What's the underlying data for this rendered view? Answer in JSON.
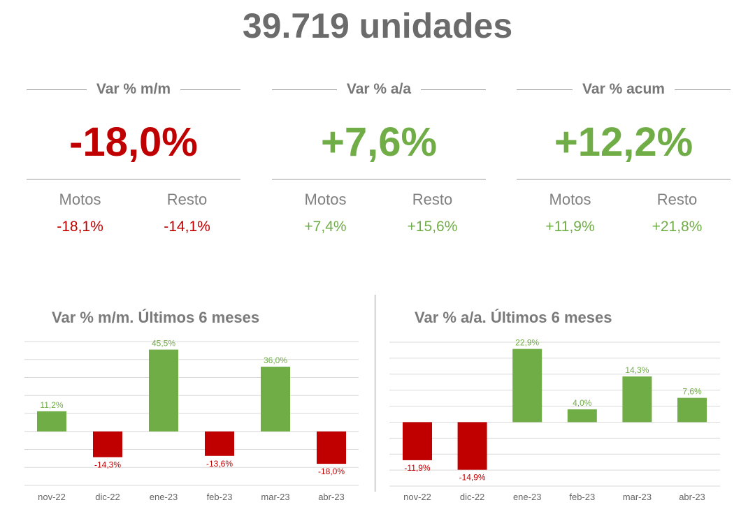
{
  "title": "39.719 unidades",
  "colors": {
    "positive": "#70ad47",
    "negative": "#c00000",
    "text": "#7a7a7a"
  },
  "kpis": [
    {
      "label": "Var % m/m",
      "value": "-18,0%",
      "sign": "negative",
      "subs": [
        {
          "label": "Motos",
          "value": "-18,1%",
          "sign": "negative"
        },
        {
          "label": "Resto",
          "value": "-14,1%",
          "sign": "negative"
        }
      ]
    },
    {
      "label": "Var % a/a",
      "value": "+7,6%",
      "sign": "positive",
      "subs": [
        {
          "label": "Motos",
          "value": "+7,4%",
          "sign": "positive"
        },
        {
          "label": "Resto",
          "value": "+15,6%",
          "sign": "positive"
        }
      ]
    },
    {
      "label": "Var % acum",
      "value": "+12,2%",
      "sign": "positive",
      "subs": [
        {
          "label": "Motos",
          "value": "+11,9%",
          "sign": "positive"
        },
        {
          "label": "Resto",
          "value": "+21,8%",
          "sign": "positive"
        }
      ]
    }
  ],
  "chart_data": [
    {
      "type": "bar",
      "title": "Var % m/m. Últimos 6 meses",
      "categories": [
        "nov-22",
        "dic-22",
        "ene-23",
        "feb-23",
        "mar-23",
        "abr-23"
      ],
      "values": [
        11.2,
        -14.3,
        45.5,
        -13.6,
        36.0,
        -18.0
      ],
      "labels": [
        "11,2%",
        "-14,3%",
        "45,5%",
        "-13,6%",
        "36,0%",
        "-18,0%"
      ],
      "ylim": [
        -30,
        50
      ],
      "ystep": 10,
      "grid": true
    },
    {
      "type": "bar",
      "title": "Var % a/a. Últimos 6 meses",
      "categories": [
        "nov-22",
        "dic-22",
        "ene-23",
        "feb-23",
        "mar-23",
        "abr-23"
      ],
      "values": [
        -11.9,
        -14.9,
        22.9,
        4.0,
        14.3,
        7.6
      ],
      "labels": [
        "-11,9%",
        "-14,9%",
        "22,9%",
        "4,0%",
        "14,3%",
        "7,6%"
      ],
      "ylim": [
        -20,
        25
      ],
      "ystep": 5,
      "grid": true
    }
  ]
}
